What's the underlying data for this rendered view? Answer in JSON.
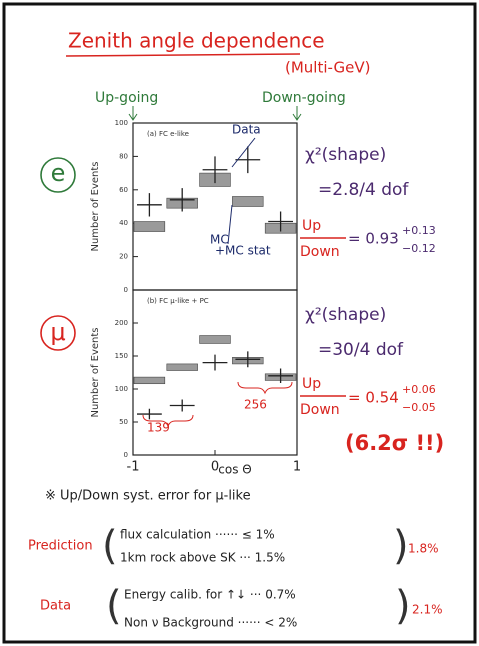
{
  "title": "Zenith angle dependence",
  "subtitle": "(Multi-GeV)",
  "direction_labels": [
    "Up-going",
    "Down-going"
  ],
  "chart_data": [
    {
      "type": "histogram",
      "panel_label": "(a) FC e-like",
      "particle": "e",
      "y_label": "Number of Events",
      "bins": [
        -1,
        -0.6,
        -0.2,
        0.2,
        0.6,
        1
      ],
      "xlim": [
        -1,
        1
      ],
      "ylim": [
        0,
        100
      ],
      "yticks": [
        0,
        20,
        40,
        60,
        80,
        100
      ],
      "series": [
        {
          "name": "MC",
          "style": "box",
          "color": "#9a9a9a",
          "values": [
            38,
            52,
            66,
            53,
            37
          ],
          "errors": [
            3,
            3,
            4,
            3,
            3
          ]
        },
        {
          "name": "Data",
          "style": "cross",
          "color": "#222222",
          "values": [
            51,
            54,
            72,
            78,
            41
          ],
          "errors": [
            7,
            7,
            8,
            8,
            6
          ]
        }
      ],
      "annotations": [
        "+MC stat"
      ],
      "chi2_label": "χ²(shape)",
      "chi2": "=2.8/4 dof",
      "ratio_num": "Up",
      "ratio_den": "Down",
      "ratio": "= 0.93",
      "ratio_plus": "+0.13",
      "ratio_minus": "−0.12"
    },
    {
      "type": "histogram",
      "panel_label": "(b) FC μ-like + PC",
      "particle": "μ",
      "y_label": "Number of Events",
      "x_label": "cos Θ",
      "bins": [
        -1,
        -0.6,
        -0.2,
        0.2,
        0.6,
        1
      ],
      "xlim": [
        -1,
        1
      ],
      "xticks": [
        -1,
        0,
        1
      ],
      "ylim": [
        0,
        250
      ],
      "yticks": [
        0,
        50,
        100,
        150,
        200
      ],
      "series": [
        {
          "style": "box",
          "color": "#9a9a9a",
          "values": [
            113,
            133,
            175,
            143,
            118
          ],
          "errors": [
            5,
            5,
            6,
            5,
            5
          ]
        },
        {
          "style": "cross",
          "color": "#222222",
          "values": [
            62,
            75,
            140,
            145,
            120
          ],
          "errors": [
            8,
            9,
            12,
            12,
            11
          ]
        }
      ],
      "annotations": [
        "139",
        "256"
      ],
      "chi2_label": "χ²(shape)",
      "chi2": "=30/4 dof",
      "ratio_num": "Up",
      "ratio_den": "Down",
      "ratio": "= 0.54",
      "ratio_plus": "+0.06",
      "ratio_minus": "−0.05",
      "significance": "(6.2σ !!)"
    }
  ],
  "footnote": "※ Up/Down syst. error for μ-like",
  "systematics": [
    {
      "label": "Prediction",
      "items": [
        "flux calculation ······ ≤ 1%",
        "1km rock above SK ··· 1.5%"
      ],
      "total": "1.8%"
    },
    {
      "label": "Data",
      "items": [
        "Energy calib. for ↑↓ ··· 0.7%",
        "Non ν Background ······ < 2%"
      ],
      "total": "2.1%"
    }
  ]
}
